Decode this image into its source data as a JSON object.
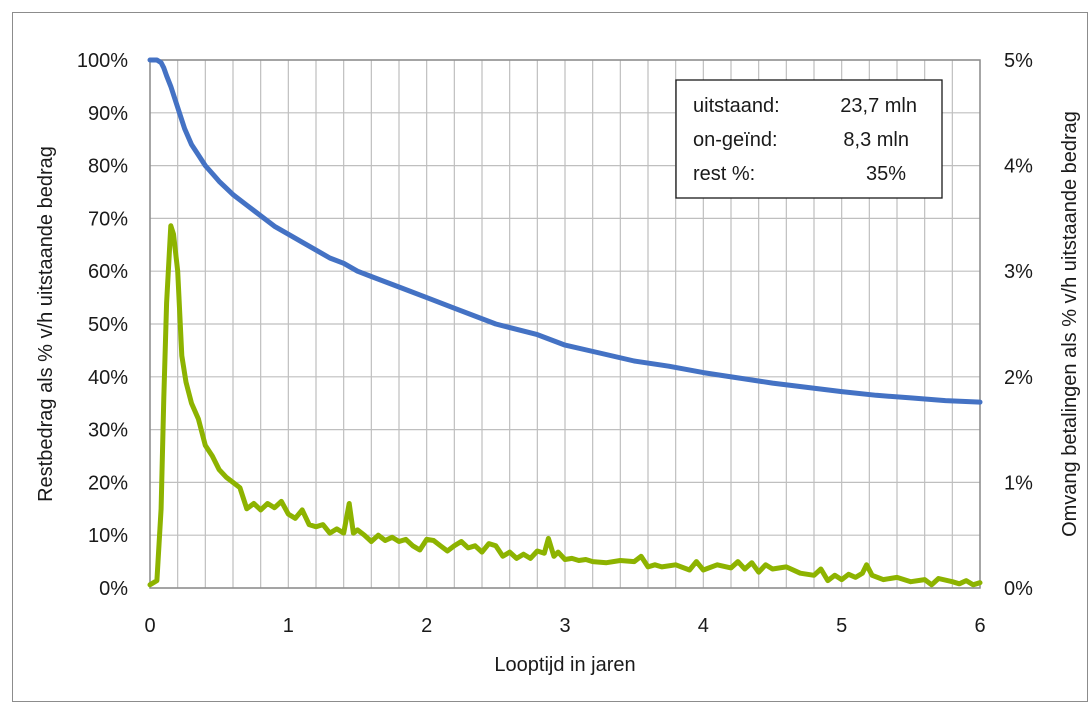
{
  "chart_data": {
    "type": "line",
    "xlabel": "Looptijd in jaren",
    "ylabel_left": "Restbedrag als % v/h uitstaande bedrag",
    "ylabel_right": "Omvang betalingen als % v/h uitstaande bedrag",
    "xlim": [
      0,
      6
    ],
    "ylim_left": [
      0,
      100
    ],
    "ylim_right": [
      0,
      5
    ],
    "x_ticks": [
      "0",
      "1",
      "2",
      "3",
      "4",
      "5",
      "6"
    ],
    "y_left_ticks": [
      "0%",
      "10%",
      "20%",
      "30%",
      "40%",
      "50%",
      "60%",
      "70%",
      "80%",
      "90%",
      "100%"
    ],
    "y_right_ticks": [
      "0%",
      "1%",
      "2%",
      "3%",
      "4%",
      "5%"
    ],
    "grid": true,
    "series": [
      {
        "axis": "left",
        "color": "#4472C4",
        "x": [
          0,
          0.05,
          0.08,
          0.1,
          0.12,
          0.15,
          0.2,
          0.25,
          0.3,
          0.35,
          0.4,
          0.45,
          0.5,
          0.6,
          0.7,
          0.8,
          0.9,
          1.0,
          1.1,
          1.2,
          1.3,
          1.4,
          1.5,
          1.6,
          1.8,
          2.0,
          2.2,
          2.5,
          2.8,
          3.0,
          3.25,
          3.5,
          3.75,
          4.0,
          4.25,
          4.5,
          4.75,
          5.0,
          5.25,
          5.5,
          5.75,
          6.0
        ],
        "values": [
          100,
          100,
          99.5,
          98.5,
          97,
          95,
          91,
          87,
          84,
          82,
          80,
          78.5,
          77,
          74.5,
          72.5,
          70.5,
          68.5,
          67,
          65.5,
          64,
          62.5,
          61.5,
          60,
          59,
          57,
          55,
          53,
          50,
          48,
          46,
          44.5,
          43,
          42,
          40.8,
          39.8,
          38.8,
          38,
          37.2,
          36.5,
          36,
          35.5,
          35.2
        ]
      },
      {
        "axis": "right",
        "color": "#8DB300",
        "x": [
          0,
          0.05,
          0.08,
          0.1,
          0.12,
          0.15,
          0.17,
          0.2,
          0.23,
          0.26,
          0.3,
          0.35,
          0.4,
          0.45,
          0.5,
          0.55,
          0.6,
          0.65,
          0.7,
          0.75,
          0.8,
          0.85,
          0.9,
          0.95,
          1.0,
          1.05,
          1.1,
          1.15,
          1.2,
          1.25,
          1.3,
          1.35,
          1.4,
          1.44,
          1.47,
          1.5,
          1.55,
          1.6,
          1.65,
          1.7,
          1.75,
          1.8,
          1.85,
          1.9,
          1.95,
          2.0,
          2.05,
          2.1,
          2.15,
          2.2,
          2.25,
          2.3,
          2.35,
          2.4,
          2.45,
          2.5,
          2.55,
          2.6,
          2.65,
          2.7,
          2.75,
          2.8,
          2.85,
          2.88,
          2.92,
          2.95,
          3.0,
          3.05,
          3.1,
          3.15,
          3.2,
          3.3,
          3.4,
          3.5,
          3.55,
          3.6,
          3.65,
          3.7,
          3.8,
          3.9,
          3.95,
          4.0,
          4.1,
          4.2,
          4.25,
          4.3,
          4.35,
          4.4,
          4.45,
          4.5,
          4.6,
          4.7,
          4.8,
          4.85,
          4.9,
          4.95,
          5.0,
          5.05,
          5.1,
          5.15,
          5.18,
          5.22,
          5.3,
          5.4,
          5.5,
          5.6,
          5.65,
          5.7,
          5.8,
          5.85,
          5.9,
          5.95,
          6.0
        ],
        "values": [
          0.03,
          0.07,
          0.75,
          1.8,
          2.7,
          3.43,
          3.35,
          3.0,
          2.2,
          1.95,
          1.75,
          1.6,
          1.35,
          1.25,
          1.12,
          1.05,
          1.0,
          0.95,
          0.75,
          0.8,
          0.74,
          0.8,
          0.76,
          0.82,
          0.7,
          0.66,
          0.74,
          0.6,
          0.58,
          0.6,
          0.52,
          0.56,
          0.52,
          0.8,
          0.52,
          0.55,
          0.5,
          0.44,
          0.5,
          0.45,
          0.48,
          0.44,
          0.46,
          0.4,
          0.36,
          0.46,
          0.45,
          0.4,
          0.35,
          0.4,
          0.44,
          0.38,
          0.4,
          0.34,
          0.42,
          0.4,
          0.3,
          0.34,
          0.28,
          0.32,
          0.28,
          0.35,
          0.33,
          0.47,
          0.3,
          0.34,
          0.27,
          0.28,
          0.26,
          0.27,
          0.25,
          0.24,
          0.26,
          0.25,
          0.3,
          0.2,
          0.22,
          0.2,
          0.22,
          0.17,
          0.25,
          0.17,
          0.22,
          0.19,
          0.25,
          0.18,
          0.24,
          0.15,
          0.22,
          0.18,
          0.2,
          0.14,
          0.12,
          0.18,
          0.07,
          0.12,
          0.08,
          0.13,
          0.1,
          0.14,
          0.22,
          0.12,
          0.08,
          0.1,
          0.06,
          0.08,
          0.03,
          0.09,
          0.06,
          0.04,
          0.07,
          0.03,
          0.05
        ]
      }
    ],
    "info_box": {
      "rows": [
        {
          "label": "uitstaand:",
          "value": "23,7 mln"
        },
        {
          "label": "on-geïnd:",
          "value": "8,3 mln"
        },
        {
          "label": "rest %:",
          "value": "35%"
        }
      ]
    }
  }
}
